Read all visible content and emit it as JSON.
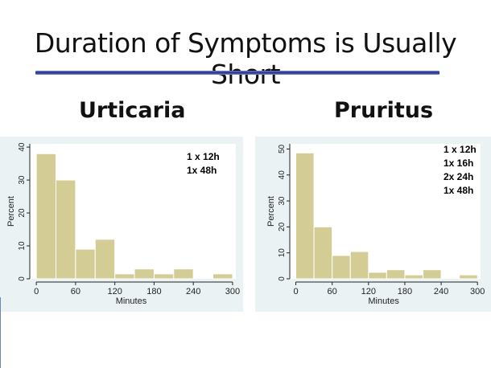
{
  "slide": {
    "title": "Duration of Symptoms is Usually Short"
  },
  "chart_data": [
    {
      "type": "bar",
      "title": "Urticaria",
      "xlabel": "Minutes",
      "ylabel": "Percent",
      "bin_edges": [
        0,
        30,
        60,
        90,
        120,
        150,
        180,
        210,
        240,
        270,
        300
      ],
      "values": [
        38,
        30,
        9,
        12,
        1.5,
        3,
        1.5,
        3,
        0,
        1.5
      ],
      "xticks": [
        0,
        60,
        120,
        180,
        240,
        300
      ],
      "yticks": [
        0,
        10,
        20,
        30,
        40
      ],
      "xlim": [
        -10,
        305
      ],
      "ylim": [
        0,
        41
      ],
      "bar_color": "#d3cc94",
      "annotations": [
        "1 x 12h",
        "1x 48h"
      ]
    },
    {
      "type": "bar",
      "title": "Pruritus",
      "xlabel": "Minutes",
      "ylabel": "Percent",
      "bin_edges": [
        0,
        30,
        60,
        90,
        120,
        150,
        180,
        210,
        240,
        270,
        300
      ],
      "values": [
        48.5,
        20,
        9,
        10.5,
        2.5,
        3.5,
        1.5,
        3.5,
        0,
        1.5
      ],
      "xticks": [
        0,
        60,
        120,
        180,
        240,
        300
      ],
      "yticks": [
        0,
        10,
        20,
        30,
        40,
        50
      ],
      "xlim": [
        -10,
        305
      ],
      "ylim": [
        0,
        52
      ],
      "bar_color": "#d3cc94",
      "annotations": [
        "1 x 12h",
        "1x 16h",
        "2x 24h",
        "1x 48h"
      ]
    }
  ]
}
